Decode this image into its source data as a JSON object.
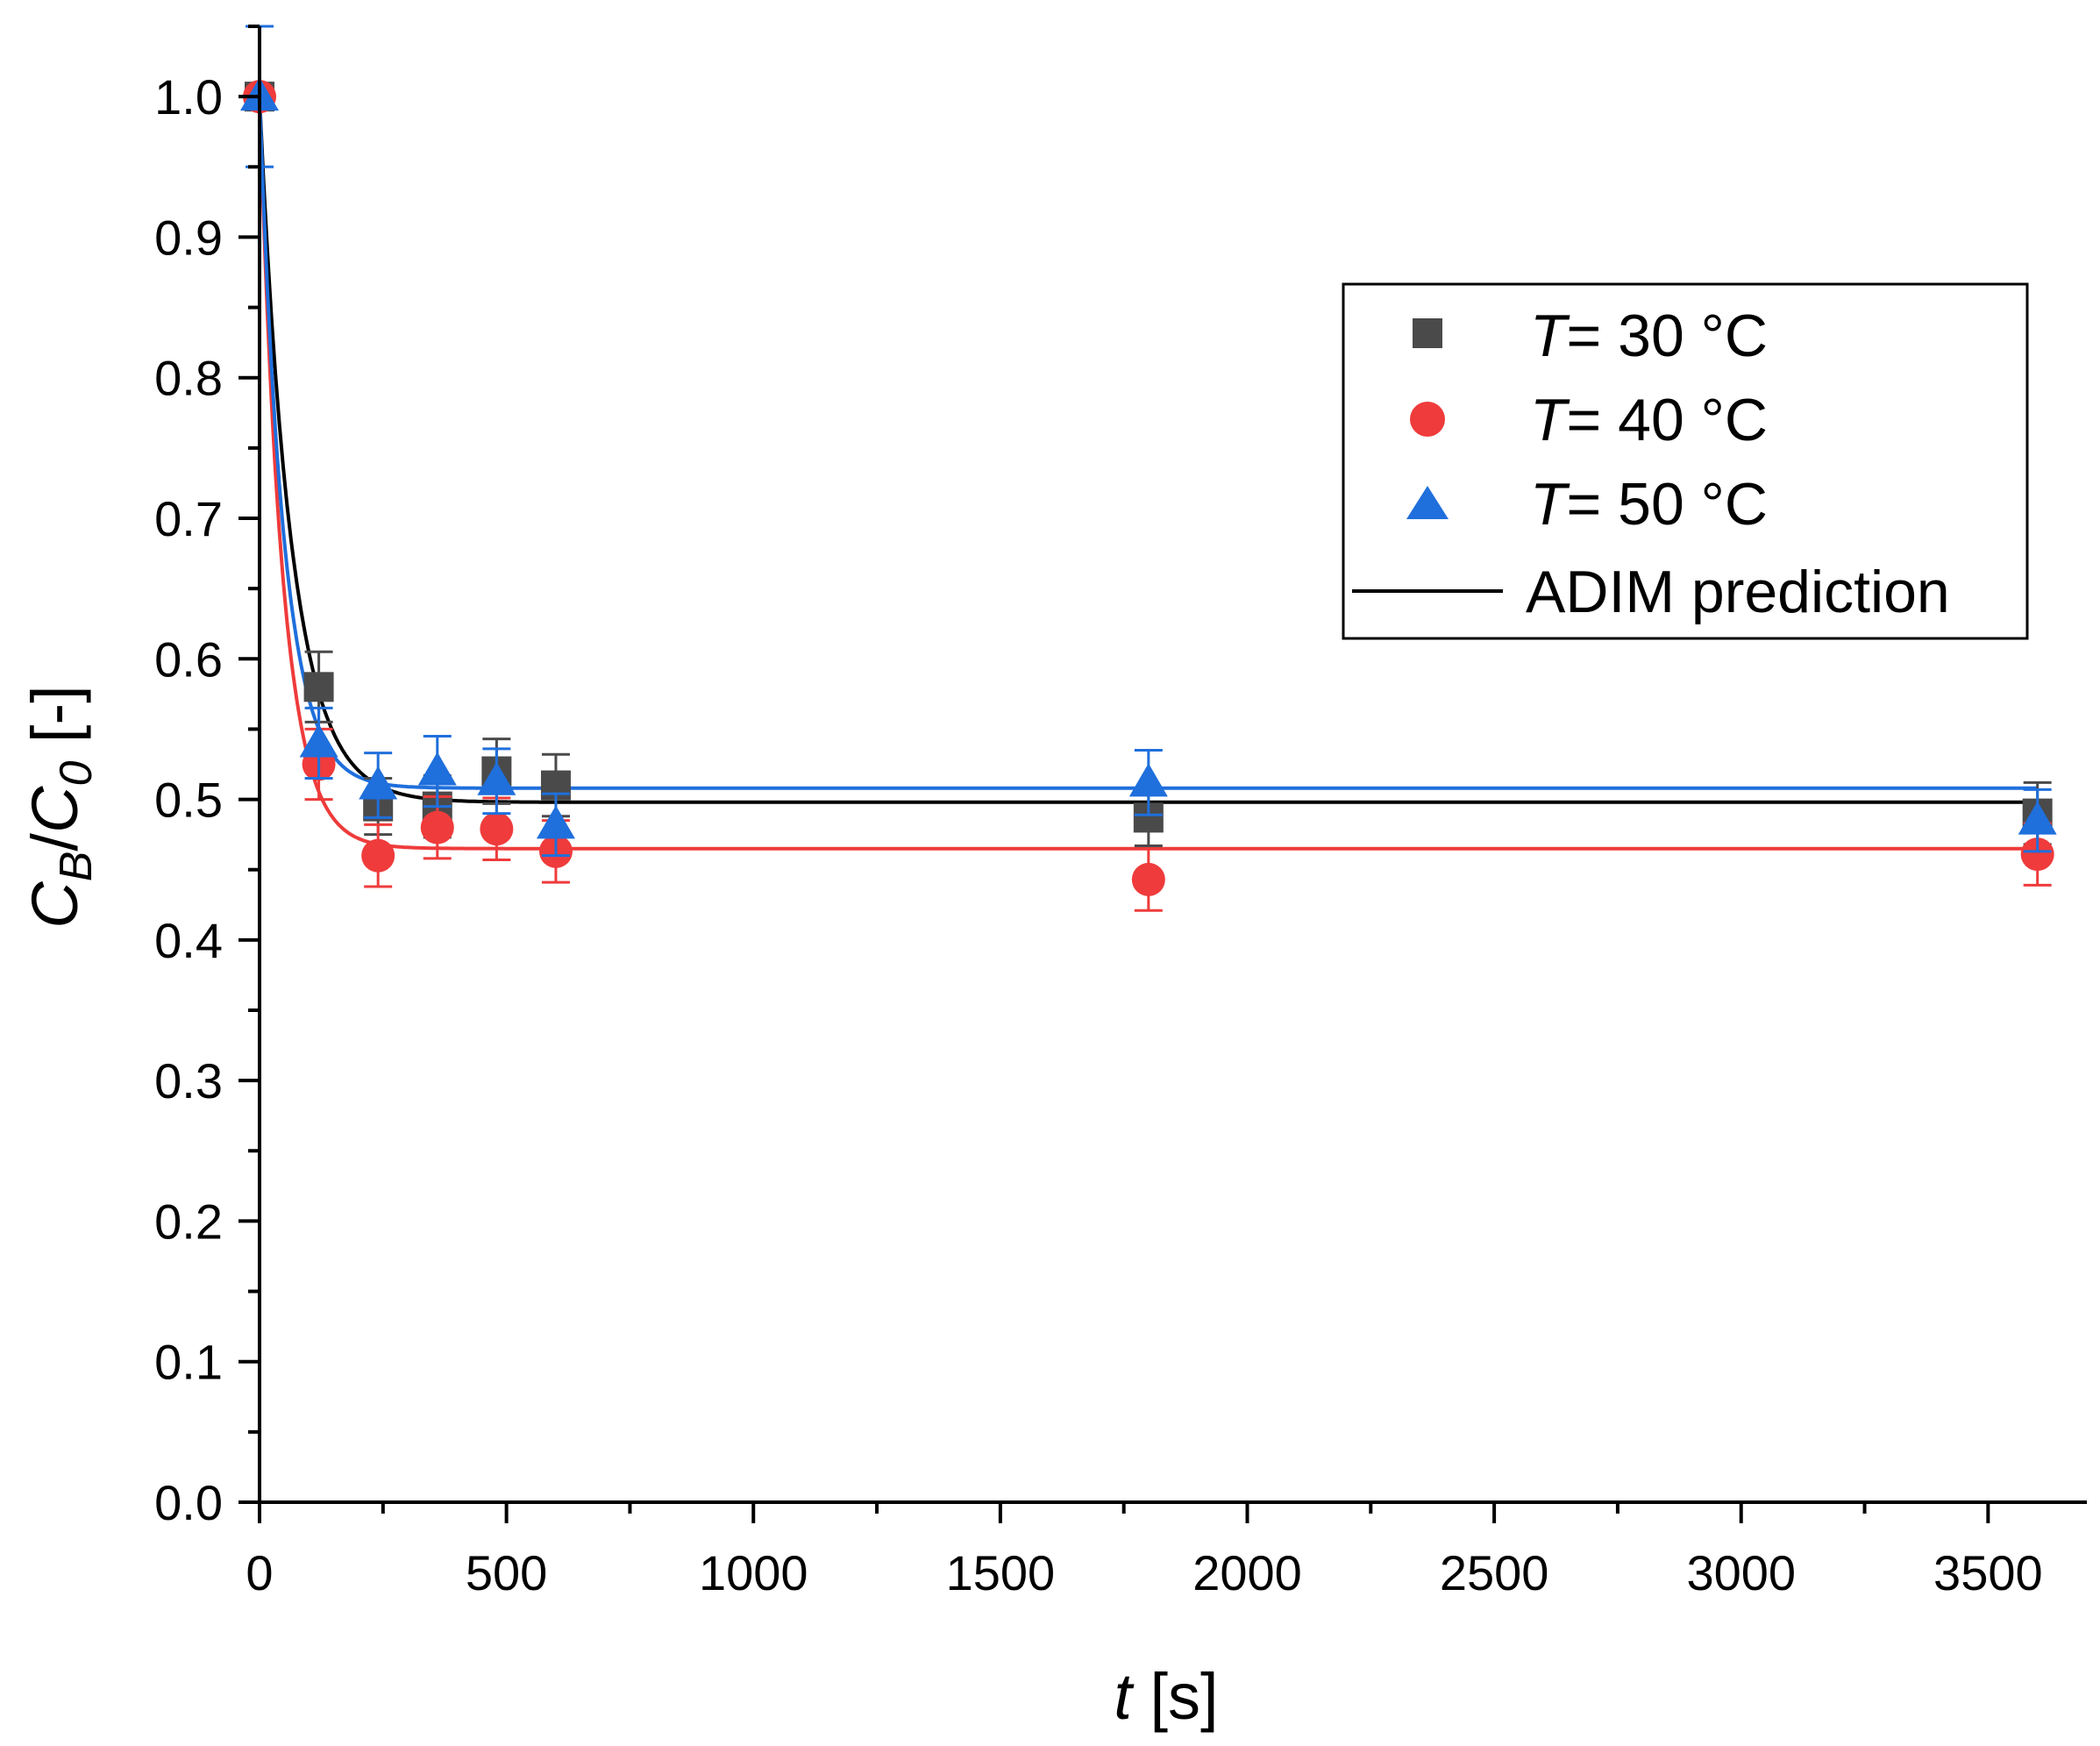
{
  "chart_data": {
    "type": "scatter",
    "title": "",
    "xlabel": {
      "var": "t",
      "unit": "[s]"
    },
    "ylabel": {
      "c": "C",
      "sub_b": "B",
      "slash": "/",
      "sub_0": "0",
      "unit": "[-]"
    },
    "xlim": [
      0,
      3700
    ],
    "ylim": [
      0.0,
      1.05
    ],
    "x_ticks": [
      0,
      500,
      1000,
      1500,
      2000,
      2500,
      3000,
      3500
    ],
    "x_tick_labels": [
      "0",
      "500",
      "1000",
      "1500",
      "2000",
      "2500",
      "3000",
      "3500"
    ],
    "y_ticks": [
      0.0,
      0.1,
      0.2,
      0.3,
      0.4,
      0.5,
      0.6,
      0.7,
      0.8,
      0.9,
      1.0
    ],
    "y_tick_labels": [
      "0.0",
      "0.1",
      "0.2",
      "0.3",
      "0.4",
      "0.5",
      "0.6",
      "0.7",
      "0.8",
      "0.9",
      "1.0"
    ],
    "grid": false,
    "legend_position": "top-right",
    "series": [
      {
        "name": "T= 30 °C",
        "legend_var": "T",
        "legend_rest": "= 30 °C",
        "marker": "square",
        "color": "#4a4a4a",
        "x": [
          0,
          120,
          240,
          360,
          480,
          600,
          1800,
          3600
        ],
        "y": [
          1.0,
          0.58,
          0.495,
          0.495,
          0.52,
          0.51,
          0.487,
          0.49
        ],
        "err": [
          0.0,
          0.025,
          0.02,
          0.022,
          0.023,
          0.022,
          0.02,
          0.022
        ],
        "fit": {
          "c_inf": 0.498,
          "k": 0.0155
        }
      },
      {
        "name": "T= 40 °C",
        "legend_var": "T",
        "legend_rest": "= 40 °C",
        "marker": "circle",
        "color": "#ef3b3b",
        "x": [
          0,
          120,
          240,
          360,
          480,
          600,
          1800,
          3600
        ],
        "y": [
          1.0,
          0.525,
          0.46,
          0.48,
          0.479,
          0.463,
          0.443,
          0.461
        ],
        "err": [
          0.0,
          0.025,
          0.022,
          0.022,
          0.022,
          0.022,
          0.022,
          0.022
        ],
        "fit": {
          "c_inf": 0.465,
          "k": 0.0215
        }
      },
      {
        "name": "T= 50 °C",
        "legend_var": "T",
        "legend_rest": "= 50 °C",
        "marker": "triangle",
        "color": "#1f6fdc",
        "x": [
          0,
          120,
          240,
          360,
          480,
          600,
          1800,
          3600
        ],
        "y": [
          1.0,
          0.54,
          0.51,
          0.52,
          0.513,
          0.482,
          0.512,
          0.485
        ],
        "err": [
          0.05,
          0.025,
          0.023,
          0.025,
          0.023,
          0.022,
          0.023,
          0.022
        ],
        "fit": {
          "c_inf": 0.508,
          "k": 0.0205
        }
      }
    ],
    "prediction": {
      "name": "ADIM prediction",
      "color": "#000000"
    }
  }
}
